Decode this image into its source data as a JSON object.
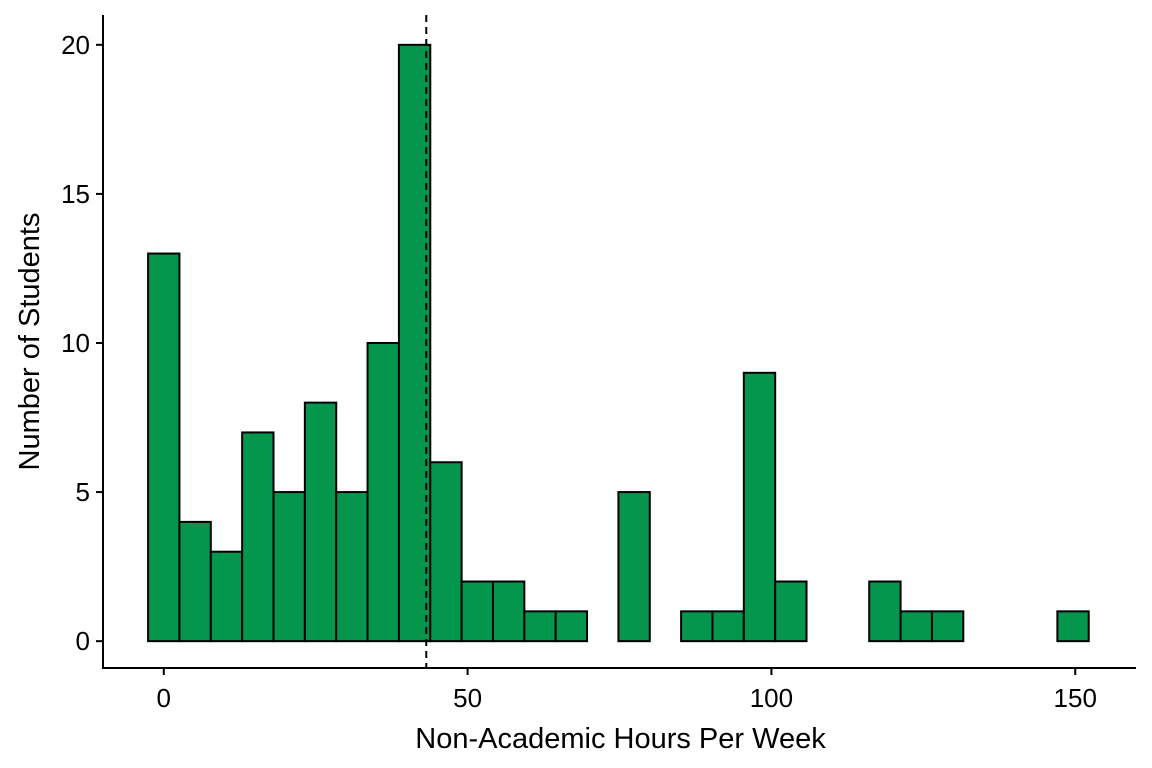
{
  "chart_data": {
    "type": "bar",
    "subtype": "histogram",
    "xlabel": "Non-Academic Hours Per Week",
    "ylabel": "Number of Students",
    "xlim": [
      -10,
      160
    ],
    "ylim": [
      -0.9,
      21
    ],
    "x_ticks": [
      0,
      50,
      100,
      150
    ],
    "y_ticks": [
      0,
      5,
      10,
      15,
      20
    ],
    "bin_width": 5.16,
    "bin_start": -2.58,
    "counts": [
      13,
      4,
      3,
      7,
      5,
      8,
      5,
      10,
      20,
      6,
      2,
      2,
      1,
      1,
      0,
      5,
      0,
      1,
      1,
      9,
      2,
      0,
      0,
      2,
      1,
      1,
      0,
      0,
      0,
      1
    ],
    "mean_line": 43.2,
    "bar_fill": "#05964d",
    "bar_outline": "#000000",
    "grid": false,
    "legend": "none"
  }
}
